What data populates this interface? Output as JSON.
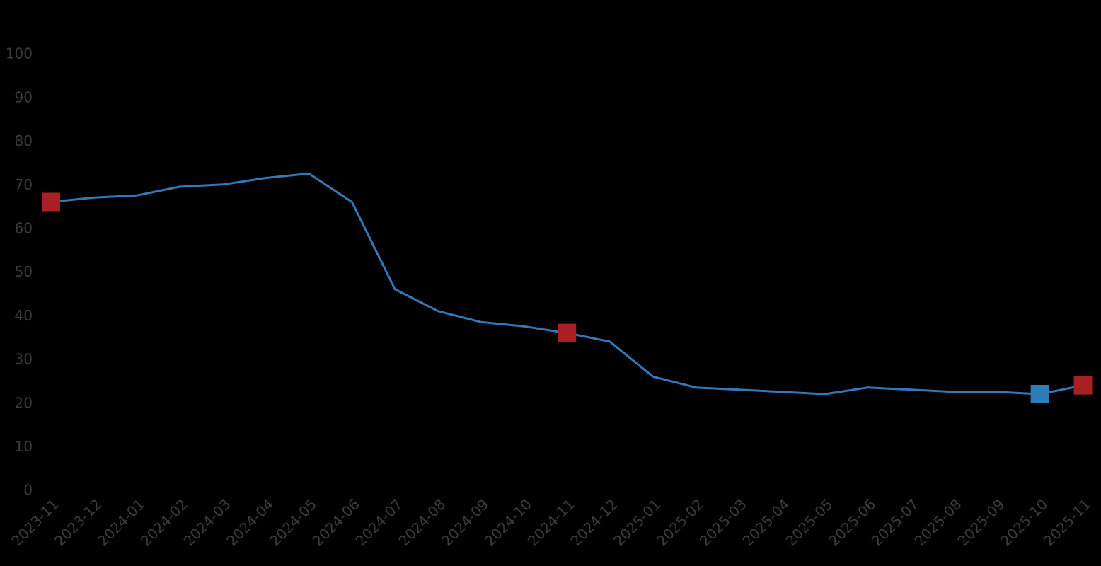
{
  "chart_data": {
    "type": "line",
    "x": [
      "2023-11",
      "2023-12",
      "2024-01",
      "2024-02",
      "2024-03",
      "2024-04",
      "2024-05",
      "2024-06",
      "2024-07",
      "2024-08",
      "2024-09",
      "2024-10",
      "2024-11",
      "2024-12",
      "2025-01",
      "2025-02",
      "2025-03",
      "2025-04",
      "2025-05",
      "2025-06",
      "2025-07",
      "2025-08",
      "2025-09",
      "2025-10",
      "2025-11"
    ],
    "series": [
      {
        "name": "value",
        "color": "#3279b7",
        "values": [
          66,
          67,
          67.5,
          69.5,
          70,
          71.5,
          72.5,
          66,
          46,
          41,
          38.5,
          37.5,
          36,
          34,
          26,
          23.5,
          23,
          22.5,
          22,
          23.5,
          23,
          22.5,
          22.5,
          22,
          24
        ]
      }
    ],
    "markers": [
      {
        "x": "2023-11",
        "value": 66,
        "color": "#a91f24",
        "shape": "square"
      },
      {
        "x": "2024-11",
        "value": 36,
        "color": "#a91f24",
        "shape": "square"
      },
      {
        "x": "2025-10",
        "value": 22,
        "color": "#2e7cb8",
        "shape": "square"
      },
      {
        "x": "2025-11",
        "value": 24,
        "color": "#a91f24",
        "shape": "square"
      }
    ],
    "title": "",
    "xlabel": "",
    "ylabel": "",
    "ylim": [
      0,
      100
    ],
    "yticks": [
      0,
      10,
      20,
      30,
      40,
      50,
      60,
      70,
      80,
      90,
      100
    ],
    "x_tick_rotation_deg": 45,
    "grid": false,
    "legend_position": "none",
    "background_color": "#000000",
    "tick_label_color": "#3c3c3c"
  }
}
